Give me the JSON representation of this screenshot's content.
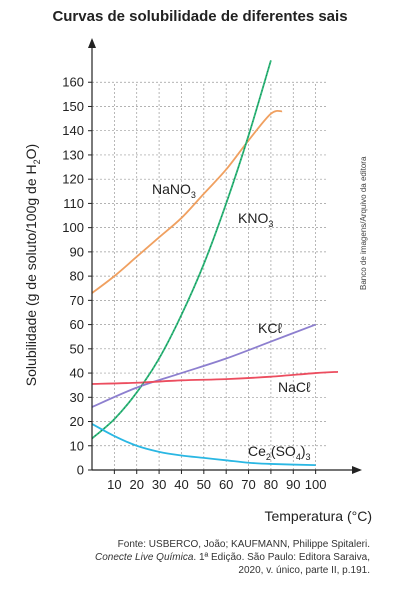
{
  "title": "Curvas de solubilidade de diferentes sais",
  "credit": "Banco de imagens/Arquivo da editora",
  "source": {
    "line1": "Fonte: USBERCO, João; KAUFMANN, Philippe Spitaleri.",
    "line2_italic": "Conecte Live Química",
    "line2_rest": ". 1ª Edição. São Paulo: Editora Saraiva,",
    "line3": "2020, v. único, parte II, p.191."
  },
  "chart_data": {
    "type": "line",
    "title": "Curvas de solubilidade de diferentes sais",
    "xlabel": "Temperatura (°C)",
    "ylabel": "Solubilidade (g de soluto/100g de H2O)",
    "xlim": [
      0,
      110
    ],
    "ylim": [
      0,
      170
    ],
    "xticks": [
      10,
      20,
      30,
      40,
      50,
      60,
      70,
      80,
      90,
      100
    ],
    "yticks": [
      0,
      10,
      20,
      30,
      40,
      50,
      60,
      70,
      80,
      90,
      100,
      110,
      120,
      130,
      140,
      150,
      160
    ],
    "grid": true,
    "series": [
      {
        "name": "NaNO3",
        "color": "#f0a060",
        "x": [
          0,
          10,
          20,
          30,
          40,
          50,
          60,
          70,
          80,
          85
        ],
        "y": [
          73,
          80,
          88,
          96,
          104,
          114,
          124,
          136,
          147,
          148
        ]
      },
      {
        "name": "KNO3",
        "color": "#2fb87a",
        "x": [
          0,
          10,
          20,
          30,
          40,
          50,
          60,
          70,
          80
        ],
        "y": [
          13,
          21,
          32,
          46,
          64,
          85,
          110,
          138,
          169
        ]
      },
      {
        "name": "KCℓ",
        "color": "#8d7fcf",
        "x": [
          0,
          20,
          40,
          60,
          80,
          100
        ],
        "y": [
          26,
          34,
          40,
          46,
          53,
          60
        ]
      },
      {
        "name": "NaCℓ",
        "color": "#ec4d5f",
        "x": [
          0,
          20,
          40,
          60,
          80,
          100,
          110
        ],
        "y": [
          35.5,
          36,
          37,
          37.5,
          38.5,
          40,
          40.5
        ]
      },
      {
        "name": "Ce2(SO4)3",
        "color": "#2ab7e3",
        "x": [
          0,
          10,
          20,
          30,
          40,
          50,
          60,
          70,
          80,
          100
        ],
        "y": [
          19,
          14,
          10,
          7.5,
          6,
          5,
          4,
          3,
          2.5,
          2
        ]
      }
    ],
    "labels": {
      "NaNO3": {
        "main": "NaNO",
        "sub": "3"
      },
      "KNO3": {
        "main": "KNO",
        "sub": "3"
      },
      "KCl": {
        "main": "KCℓ"
      },
      "NaCl": {
        "main": "NaCℓ"
      },
      "Ce2SO43": {
        "p1": "Ce",
        "s1": "2",
        "p2": "(SO",
        "s2": "4",
        "p3": ")",
        "s3": "3"
      }
    }
  }
}
